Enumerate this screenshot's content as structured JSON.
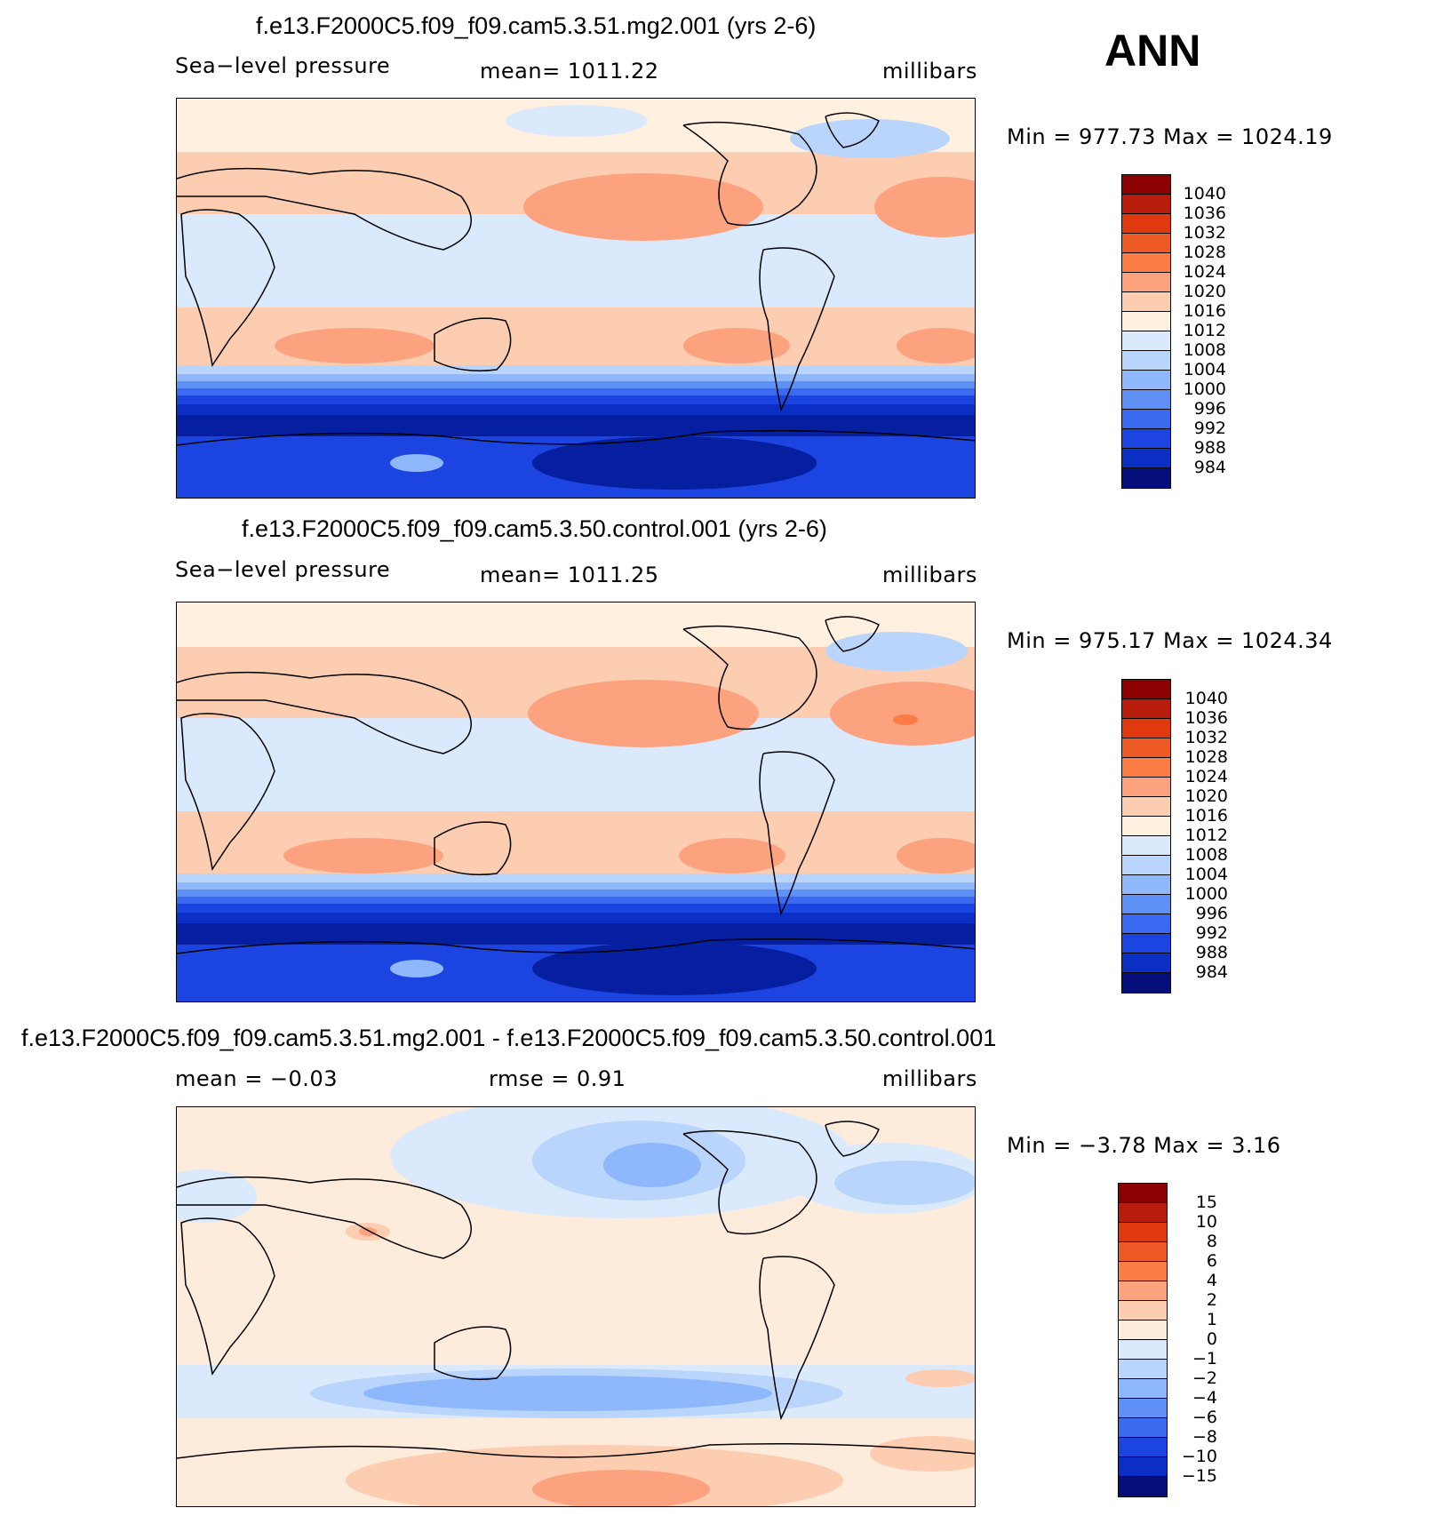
{
  "season": "ANN",
  "colors": {
    "abs": [
      "#8b0000",
      "#b71c0c",
      "#e0390f",
      "#ee5a25",
      "#fb7d45",
      "#fca27e",
      "#fdcdb1",
      "#fff0e0",
      "#dbe9fd",
      "#b9d5fc",
      "#8eb8fb",
      "#5f90f6",
      "#3b6af0",
      "#1c44e0",
      "#0b2ec4",
      "#061ea0",
      "#040f7c"
    ],
    "diff": [
      "#8b0000",
      "#b71c0c",
      "#e0390f",
      "#ee5a25",
      "#fb7d45",
      "#fca27e",
      "#fdcdb1",
      "#fdebdc",
      "#dbe9fd",
      "#b9d5fc",
      "#8eb8fb",
      "#5f90f6",
      "#3b6af0",
      "#1c44e0",
      "#0b2ec4",
      "#040f7c"
    ],
    "ocean_land_line": "#000000"
  },
  "panels": [
    {
      "id": "test",
      "title": "f.e13.F2000C5.f09_f09.cam5.3.51.mg2.001 (yrs 2-6)",
      "variable": "Sea−level pressure",
      "mean_text": "mean=  1011.22",
      "units": "millibars",
      "minmax": "Min  =  977.73  Max  =  1024.19",
      "colorbar_labels": [
        "1040",
        "1036",
        "1032",
        "1028",
        "1024",
        "1020",
        "1016",
        "1012",
        "1008",
        "1004",
        "1000",
        "996",
        "992",
        "988",
        "984"
      ]
    },
    {
      "id": "control",
      "title": "f.e13.F2000C5.f09_f09.cam5.3.50.control.001 (yrs 2-6)",
      "variable": "Sea−level pressure",
      "mean_text": "mean=  1011.25",
      "units": "millibars",
      "minmax": "Min  =  975.17  Max  =  1024.34",
      "colorbar_labels": [
        "1040",
        "1036",
        "1032",
        "1028",
        "1024",
        "1020",
        "1016",
        "1012",
        "1008",
        "1004",
        "1000",
        "996",
        "992",
        "988",
        "984"
      ]
    },
    {
      "id": "difference",
      "title": "f.e13.F2000C5.f09_f09.cam5.3.51.mg2.001 - f.e13.F2000C5.f09_f09.cam5.3.50.control.001",
      "mean_text": "mean  =    −0.03",
      "rmse_text": "rmse  =      0.91",
      "units": "millibars",
      "minmax": "Min  =    −3.78  Max  =      3.16",
      "colorbar_labels": [
        "15",
        "10",
        "8",
        "6",
        "4",
        "2",
        "1",
        "0",
        "−1",
        "−2",
        "−4",
        "−6",
        "−8",
        "−10",
        "−15"
      ]
    }
  ]
}
